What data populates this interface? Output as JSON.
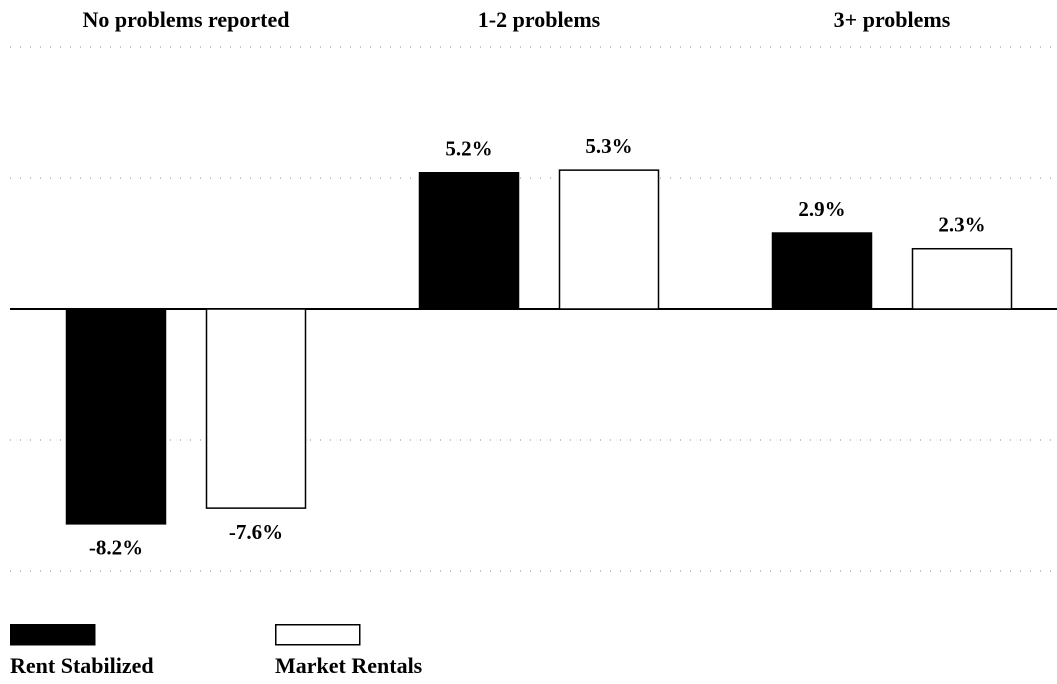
{
  "chart_data": {
    "type": "bar",
    "categories": [
      "No problems reported",
      "1-2 problems",
      "3+ problems"
    ],
    "series": [
      {
        "name": "Rent Stabilized",
        "color": "#000000",
        "values": [
          -8.2,
          5.2,
          2.9
        ],
        "value_labels": [
          "-8.2%",
          "5.2%",
          "2.9%"
        ]
      },
      {
        "name": "Market Rentals",
        "color": "#ffffff",
        "values": [
          -7.6,
          5.3,
          2.3
        ],
        "value_labels": [
          "-7.6%",
          "5.3%",
          "2.3%"
        ]
      }
    ],
    "ylim": [
      -10,
      10
    ],
    "yticks": [
      -10,
      -5,
      0,
      5,
      10
    ],
    "grid": true,
    "legend": "bottom-left"
  }
}
